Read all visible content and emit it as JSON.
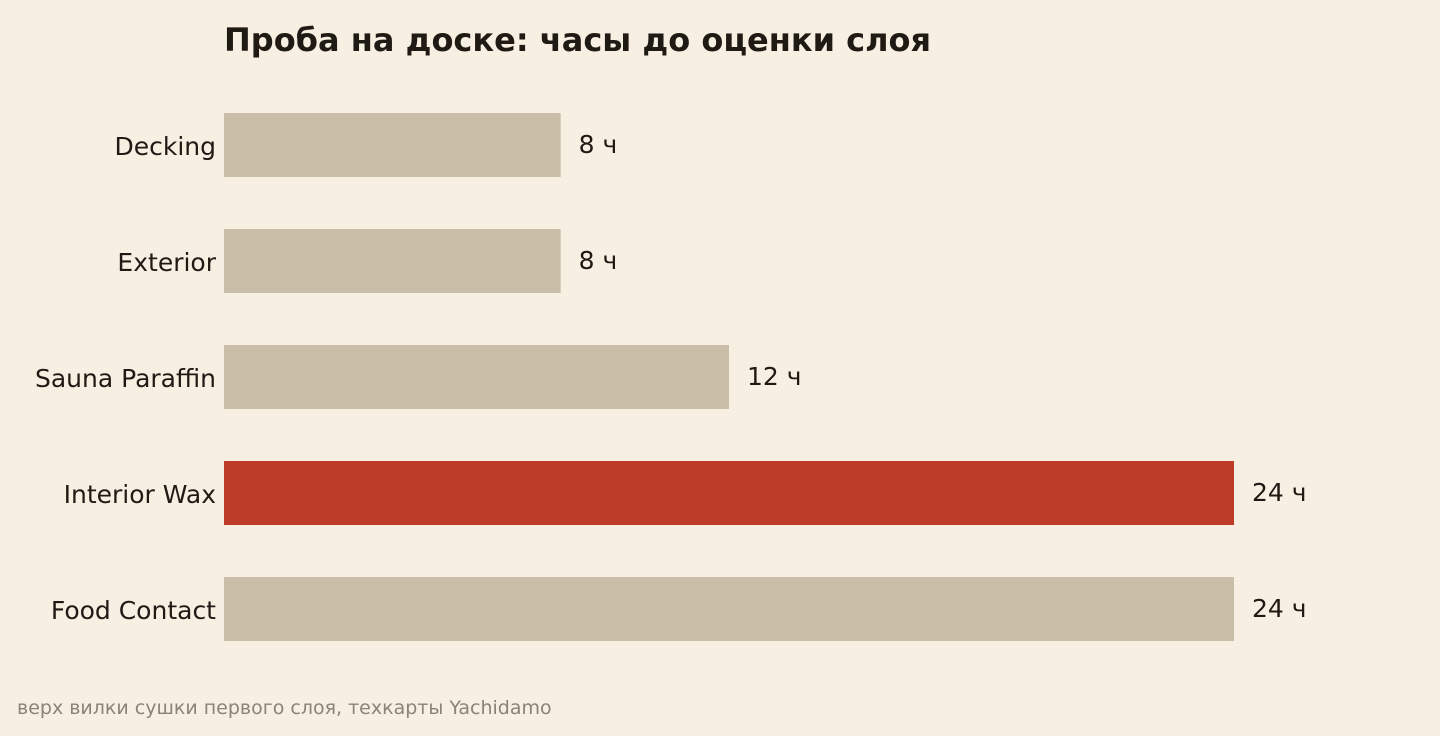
{
  "chart_data": {
    "type": "bar",
    "orientation": "horizontal",
    "title": "Проба на доске: часы до оценки слоя",
    "caption": "верх вилки сушки первого слоя, техкарты Yachidamo",
    "categories": [
      "Decking",
      "Exterior",
      "Sauna Paraffin",
      "Interior Wax",
      "Food Contact"
    ],
    "values": [
      8,
      8,
      12,
      24,
      24
    ],
    "value_labels": [
      "8 ч",
      "8 ч",
      "12 ч",
      "24 ч",
      "24 ч"
    ],
    "unit": "ч",
    "highlight_category": "Interior Wax",
    "xlim": [
      0,
      24
    ],
    "grid": false,
    "legend": "none",
    "colors": {
      "bar": "#c9bfa8",
      "highlight": "#bc3c28",
      "background": "#f6efe2",
      "text": "#1f1a14",
      "caption": "#8a8378"
    }
  }
}
